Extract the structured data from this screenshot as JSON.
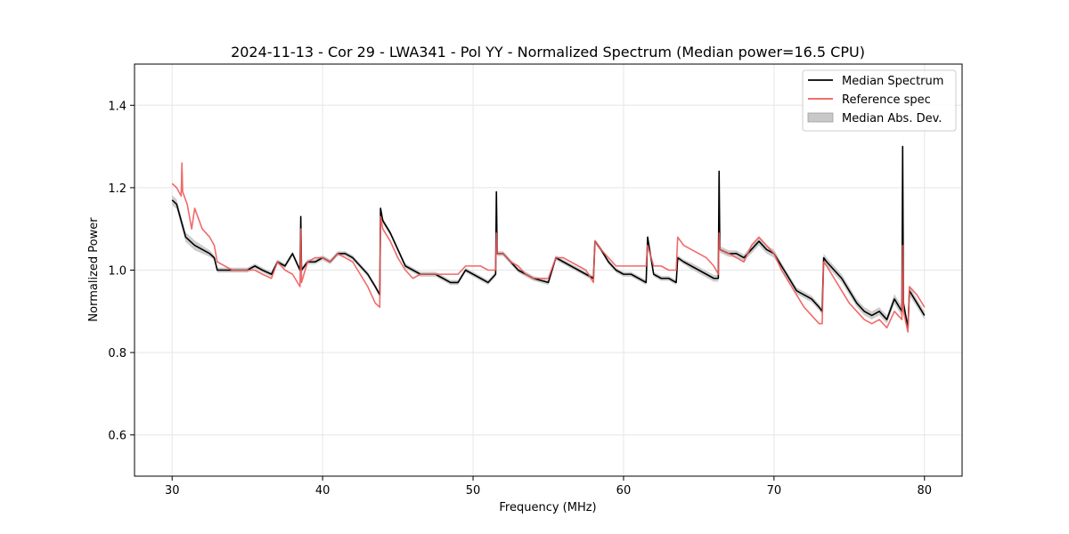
{
  "chart_data": {
    "type": "line",
    "title": "2024-11-13 - Cor 29 - LWA341 - Pol YY - Normalized Spectrum (Median power=16.5 CPU)",
    "xlabel": "Frequency (MHz)",
    "ylabel": "Normalized Power",
    "xlim": [
      27.5,
      82.5
    ],
    "ylim": [
      0.5,
      1.5
    ],
    "xticks": [
      30,
      40,
      50,
      60,
      70,
      80
    ],
    "yticks": [
      0.6,
      0.8,
      1.0,
      1.2,
      1.4
    ],
    "grid": true,
    "legend_position": "top-right",
    "series": [
      {
        "name": "Median Spectrum",
        "color": "#000000",
        "x": [
          30.0,
          30.3,
          30.6,
          30.9,
          31.2,
          31.5,
          32.0,
          32.5,
          32.8,
          33.0,
          34.0,
          35.0,
          35.5,
          36.0,
          36.6,
          37.0,
          37.5,
          38.0,
          38.5,
          38.55,
          38.6,
          39.0,
          39.5,
          40.0,
          40.5,
          41.0,
          41.5,
          42.0,
          42.5,
          43.0,
          43.5,
          43.8,
          43.85,
          44.0,
          44.5,
          45.0,
          45.5,
          46.0,
          46.5,
          47.0,
          47.5,
          48.0,
          48.5,
          49.0,
          49.5,
          50.0,
          50.5,
          51.0,
          51.5,
          51.55,
          51.6,
          52.0,
          52.5,
          53.0,
          53.5,
          54.0,
          55.0,
          55.5,
          56.0,
          56.5,
          57.0,
          57.5,
          58.0,
          58.1,
          58.5,
          59.0,
          59.5,
          60.0,
          60.5,
          61.0,
          61.5,
          61.6,
          62.0,
          62.5,
          63.0,
          63.5,
          63.6,
          64.0,
          64.5,
          65.0,
          65.5,
          66.0,
          66.3,
          66.35,
          66.4,
          67.0,
          67.5,
          68.0,
          68.5,
          69.0,
          69.5,
          70.0,
          70.5,
          71.0,
          71.5,
          72.0,
          72.5,
          73.0,
          73.2,
          73.3,
          73.5,
          74.0,
          74.5,
          75.0,
          75.5,
          76.0,
          76.5,
          77.0,
          77.5,
          78.0,
          78.5,
          78.55,
          78.6,
          78.9,
          79.0,
          79.5,
          80.0
        ],
        "values": [
          1.17,
          1.16,
          1.12,
          1.08,
          1.07,
          1.06,
          1.05,
          1.04,
          1.03,
          1.0,
          1.0,
          1.0,
          1.01,
          1.0,
          0.99,
          1.02,
          1.01,
          1.04,
          1.0,
          1.13,
          1.0,
          1.02,
          1.02,
          1.03,
          1.02,
          1.04,
          1.04,
          1.03,
          1.01,
          0.99,
          0.96,
          0.94,
          1.15,
          1.12,
          1.09,
          1.05,
          1.01,
          1.0,
          0.99,
          0.99,
          0.99,
          0.98,
          0.97,
          0.97,
          1.0,
          0.99,
          0.98,
          0.97,
          0.99,
          1.19,
          1.04,
          1.04,
          1.02,
          1.0,
          0.99,
          0.98,
          0.97,
          1.03,
          1.02,
          1.01,
          1.0,
          0.99,
          0.98,
          1.07,
          1.05,
          1.02,
          1.0,
          0.99,
          0.99,
          0.98,
          0.97,
          1.08,
          0.99,
          0.98,
          0.98,
          0.97,
          1.03,
          1.02,
          1.01,
          1.0,
          0.99,
          0.98,
          0.98,
          1.24,
          1.05,
          1.04,
          1.04,
          1.03,
          1.05,
          1.07,
          1.05,
          1.04,
          1.01,
          0.98,
          0.95,
          0.94,
          0.93,
          0.91,
          0.9,
          1.03,
          1.02,
          1.0,
          0.98,
          0.95,
          0.92,
          0.9,
          0.89,
          0.9,
          0.88,
          0.93,
          0.9,
          1.3,
          0.92,
          0.86,
          0.95,
          0.92,
          0.89
        ],
        "mad": [
          0.012,
          0.012,
          0.012,
          0.012,
          0.012,
          0.012,
          0.01,
          0.008,
          0.006,
          0.006,
          0.006,
          0.006,
          0.006,
          0.006,
          0.006,
          0.006,
          0.006,
          0.006,
          0.006,
          0.006,
          0.006,
          0.006,
          0.006,
          0.006,
          0.006,
          0.006,
          0.006,
          0.006,
          0.006,
          0.006,
          0.006,
          0.006,
          0.006,
          0.006,
          0.006,
          0.006,
          0.006,
          0.006,
          0.006,
          0.006,
          0.006,
          0.006,
          0.006,
          0.006,
          0.006,
          0.006,
          0.006,
          0.006,
          0.006,
          0.012,
          0.006,
          0.006,
          0.006,
          0.006,
          0.006,
          0.006,
          0.006,
          0.006,
          0.006,
          0.006,
          0.006,
          0.006,
          0.006,
          0.006,
          0.006,
          0.006,
          0.006,
          0.006,
          0.006,
          0.006,
          0.006,
          0.006,
          0.006,
          0.006,
          0.006,
          0.006,
          0.006,
          0.006,
          0.008,
          0.008,
          0.008,
          0.008,
          0.008,
          0.015,
          0.008,
          0.008,
          0.008,
          0.008,
          0.01,
          0.01,
          0.01,
          0.01,
          0.008,
          0.008,
          0.008,
          0.008,
          0.008,
          0.008,
          0.008,
          0.01,
          0.01,
          0.01,
          0.01,
          0.01,
          0.01,
          0.01,
          0.01,
          0.01,
          0.01,
          0.012,
          0.012,
          0.03,
          0.012,
          0.012,
          0.012,
          0.01,
          0.01
        ]
      },
      {
        "name": "Reference spec",
        "color": "#f05a5a",
        "x": [
          30.0,
          30.3,
          30.6,
          30.65,
          30.7,
          31.0,
          31.3,
          31.5,
          31.8,
          32.0,
          32.5,
          32.8,
          33.0,
          34.0,
          35.0,
          35.5,
          36.0,
          36.6,
          37.0,
          37.5,
          38.0,
          38.5,
          38.55,
          38.6,
          39.0,
          39.5,
          40.0,
          40.5,
          41.0,
          41.5,
          42.0,
          42.5,
          43.0,
          43.5,
          43.8,
          43.85,
          44.0,
          44.5,
          45.0,
          45.5,
          46.0,
          46.5,
          47.0,
          47.5,
          48.0,
          48.5,
          49.0,
          49.5,
          50.0,
          50.5,
          51.0,
          51.5,
          51.55,
          51.6,
          52.0,
          52.5,
          53.0,
          53.5,
          54.0,
          55.0,
          55.5,
          56.0,
          56.5,
          57.0,
          57.5,
          58.0,
          58.1,
          58.5,
          59.0,
          59.5,
          60.0,
          60.5,
          61.0,
          61.5,
          61.6,
          62.0,
          62.5,
          63.0,
          63.5,
          63.6,
          64.0,
          64.5,
          65.0,
          65.5,
          66.0,
          66.3,
          66.35,
          66.4,
          67.0,
          67.5,
          68.0,
          68.5,
          69.0,
          69.5,
          70.0,
          70.5,
          71.0,
          71.5,
          72.0,
          72.5,
          73.0,
          73.2,
          73.3,
          73.5,
          74.0,
          74.5,
          75.0,
          75.5,
          76.0,
          76.5,
          77.0,
          77.5,
          78.0,
          78.5,
          78.55,
          78.6,
          78.9,
          79.0,
          79.5,
          80.0
        ],
        "values": [
          1.21,
          1.2,
          1.18,
          1.26,
          1.19,
          1.16,
          1.1,
          1.15,
          1.12,
          1.1,
          1.08,
          1.06,
          1.02,
          1.0,
          1.0,
          1.0,
          0.99,
          0.98,
          1.02,
          1.0,
          0.99,
          0.96,
          1.1,
          0.97,
          1.02,
          1.03,
          1.03,
          1.02,
          1.04,
          1.03,
          1.02,
          0.99,
          0.96,
          0.92,
          0.91,
          1.13,
          1.1,
          1.07,
          1.03,
          1.0,
          0.98,
          0.99,
          0.99,
          0.99,
          0.99,
          0.99,
          0.99,
          1.01,
          1.01,
          1.01,
          1.0,
          1.0,
          1.09,
          1.04,
          1.04,
          1.02,
          1.01,
          0.99,
          0.98,
          0.98,
          1.03,
          1.03,
          1.02,
          1.01,
          1.0,
          0.97,
          1.07,
          1.05,
          1.03,
          1.01,
          1.01,
          1.01,
          1.01,
          1.01,
          1.06,
          1.01,
          1.01,
          1.0,
          1.0,
          1.08,
          1.06,
          1.05,
          1.04,
          1.03,
          1.01,
          0.99,
          1.09,
          1.05,
          1.04,
          1.03,
          1.02,
          1.06,
          1.08,
          1.06,
          1.04,
          1.0,
          0.97,
          0.94,
          0.91,
          0.89,
          0.87,
          0.87,
          1.02,
          1.01,
          0.98,
          0.95,
          0.92,
          0.9,
          0.88,
          0.87,
          0.88,
          0.86,
          0.9,
          0.88,
          1.06,
          0.9,
          0.85,
          0.96,
          0.94,
          0.91
        ]
      }
    ],
    "legend": [
      {
        "label": "Median Spectrum",
        "type": "line",
        "color": "#000000"
      },
      {
        "label": "Reference spec",
        "type": "line",
        "color": "#f05a5a"
      },
      {
        "label": "Median Abs. Dev.",
        "type": "patch",
        "color": "#c8c8c8"
      }
    ]
  }
}
